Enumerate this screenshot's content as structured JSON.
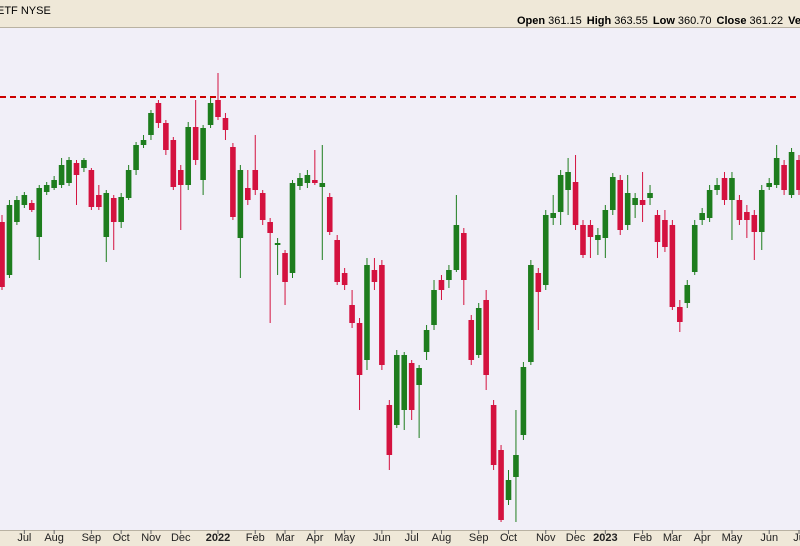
{
  "header": {
    "symbol": "ETF NYSE",
    "quote": [
      {
        "label": "Open",
        "value": "361.15"
      },
      {
        "label": "High",
        "value": "363.55"
      },
      {
        "label": "Low",
        "value": "360.70"
      },
      {
        "label": "Close",
        "value": "361.22"
      },
      {
        "label": "Ve",
        "value": null
      }
    ]
  },
  "chart_data": {
    "type": "candlestick",
    "categories": [
      null,
      null,
      null,
      "Jul",
      null,
      null,
      null,
      "Aug",
      null,
      null,
      null,
      null,
      "Sep",
      null,
      null,
      null,
      "Oct",
      null,
      null,
      null,
      "Nov",
      null,
      null,
      null,
      "Dec",
      null,
      null,
      null,
      null,
      "2022",
      null,
      null,
      null,
      null,
      "Feb",
      null,
      null,
      null,
      "Mar",
      null,
      null,
      null,
      "Apr",
      null,
      null,
      null,
      "May",
      null,
      null,
      null,
      null,
      "Jun",
      null,
      null,
      null,
      "Jul",
      null,
      null,
      null,
      "Aug",
      null,
      null,
      null,
      null,
      "Sep",
      null,
      null,
      null,
      "Oct",
      null,
      null,
      null,
      null,
      "Nov",
      null,
      null,
      null,
      "Dec",
      null,
      null,
      null,
      "2023",
      null,
      null,
      null,
      null,
      "Feb",
      null,
      null,
      null,
      "Mar",
      null,
      null,
      null,
      "Apr",
      null,
      null,
      null,
      "May",
      null,
      null,
      null,
      null,
      "Jun",
      null,
      null,
      null,
      "Ju"
    ],
    "open": [
      346.5,
      333.25,
      346.5,
      350.75,
      351.25,
      342.75,
      354,
      355,
      355.75,
      356.25,
      361.25,
      360,
      359.5,
      353.25,
      342.75,
      352.5,
      346.5,
      352.5,
      359.5,
      365.75,
      368.25,
      376.25,
      371.25,
      367,
      359.5,
      355.75,
      370.25,
      357,
      370.75,
      377,
      372.5,
      365.25,
      342.5,
      355,
      359.5,
      353.75,
      346.5,
      340.75,
      338.75,
      333.75,
      355.5,
      356.25,
      357,
      355.25,
      352.75,
      342,
      333.75,
      325.75,
      321.25,
      312,
      334.5,
      335.75,
      300.75,
      295.75,
      299.5,
      311.25,
      305.75,
      314,
      320.75,
      332,
      332,
      334.5,
      343.75,
      322,
      313.25,
      327,
      300.75,
      289.5,
      277,
      282.75,
      293.25,
      311.5,
      333.75,
      330.75,
      347.5,
      349,
      354.5,
      356.5,
      345.75,
      345.75,
      342,
      342.5,
      349.5,
      357,
      345.75,
      350.75,
      352,
      352.5,
      348.25,
      347,
      345.75,
      325.25,
      326.25,
      334,
      347,
      347.5,
      354.5,
      357.5,
      352,
      352,
      349,
      348.25,
      344,
      355.25,
      355.75,
      360.75,
      353.25,
      362
    ],
    "high": [
      348.25,
      352,
      353,
      354,
      352,
      355.75,
      356.5,
      358,
      362.5,
      362.75,
      362,
      362.5,
      360,
      355.75,
      354.5,
      353.25,
      353.75,
      360.75,
      366.5,
      368.25,
      374.5,
      377,
      372,
      367.75,
      360.75,
      371.5,
      377,
      370.75,
      377.5,
      383.75,
      373.75,
      366.25,
      360.75,
      359.5,
      368.25,
      354.5,
      347.5,
      342.5,
      339.5,
      357,
      358.75,
      359.5,
      364.5,
      365.75,
      353.75,
      343.25,
      335,
      329.5,
      322.5,
      337.5,
      337.5,
      337,
      302,
      314.5,
      314,
      312,
      310.75,
      320.75,
      332,
      333.25,
      335.75,
      353.25,
      345,
      323.25,
      326.25,
      329.5,
      302,
      290.75,
      284.5,
      299.5,
      311.5,
      337,
      335,
      349.5,
      353.25,
      359.5,
      362.5,
      363.25,
      347,
      347,
      345,
      350.75,
      358.75,
      358.25,
      358.25,
      353.75,
      359,
      355.75,
      349.5,
      349.5,
      347,
      327,
      332,
      347,
      350,
      355.75,
      357.5,
      359,
      359,
      353.25,
      350.75,
      349.5,
      355.75,
      357.5,
      365.75,
      362,
      365,
      363.25
    ],
    "low": [
      329.5,
      332.5,
      345.75,
      350,
      349,
      337,
      353.25,
      354.5,
      355,
      355.5,
      350.75,
      359,
      349.5,
      349.5,
      336.5,
      339.5,
      345,
      352,
      358.25,
      365,
      367,
      370,
      363.25,
      354.5,
      344.5,
      354.5,
      360.75,
      353.25,
      370,
      372,
      367,
      347,
      332.5,
      350.75,
      353.25,
      345.75,
      321.25,
      333.25,
      325.75,
      332.5,
      354.5,
      355,
      355.75,
      337,
      343.25,
      330.75,
      329.5,
      320,
      299.5,
      309.5,
      329.5,
      309.5,
      284.5,
      295,
      294.5,
      297,
      292.5,
      312,
      319.5,
      327,
      330,
      334,
      325.75,
      310.75,
      312.5,
      304.5,
      284.5,
      271.5,
      275.75,
      271.5,
      292,
      310.75,
      319.5,
      329.5,
      345.75,
      345.75,
      348.25,
      344.5,
      337.5,
      337.5,
      338.25,
      337.5,
      348.25,
      343.25,
      344.5,
      347.5,
      346.5,
      350.75,
      337.5,
      339,
      324.5,
      319,
      325,
      333.25,
      345.75,
      346.5,
      353.25,
      350.75,
      342,
      345.75,
      342.5,
      337,
      339.5,
      354.5,
      355,
      353.25,
      352.5,
      353.25
    ],
    "close": [
      330.25,
      350.75,
      352,
      353.25,
      349.5,
      355,
      355.75,
      357,
      360.75,
      362,
      358.25,
      362,
      350.25,
      350.25,
      353.75,
      346.5,
      352.75,
      359.5,
      365.75,
      367,
      373.75,
      371.25,
      364.5,
      355.25,
      355.75,
      370.25,
      362,
      370,
      376.25,
      372.75,
      369.5,
      347.75,
      359.5,
      352,
      354.5,
      347,
      343.75,
      341.25,
      331.5,
      356.25,
      357.5,
      358.25,
      356.25,
      356.25,
      344,
      331.5,
      330.75,
      321.25,
      308.25,
      335.75,
      331.5,
      310.75,
      288.25,
      313.25,
      313.25,
      299.5,
      310,
      319.5,
      329.5,
      329.5,
      334.5,
      345.75,
      332,
      312,
      325,
      308.25,
      285.75,
      272,
      282,
      288.25,
      310.25,
      335.75,
      329,
      348.25,
      348.75,
      358.25,
      359,
      345.75,
      338.25,
      342.75,
      343.25,
      349.5,
      357.75,
      344.5,
      353.75,
      352.5,
      350.75,
      353.75,
      341.5,
      340.25,
      325.25,
      321.5,
      330.75,
      345.75,
      348.75,
      354.5,
      355.75,
      352,
      357.5,
      347,
      347,
      344,
      354.5,
      356.25,
      362.5,
      354.5,
      364,
      354.5
    ],
    "up_color": "#1e7d1e",
    "down_color": "#d4123f",
    "reference_line": {
      "value": 377.75,
      "color": "#cc0000"
    },
    "ylim": [
      269.5,
      395
    ],
    "grid": false
  }
}
